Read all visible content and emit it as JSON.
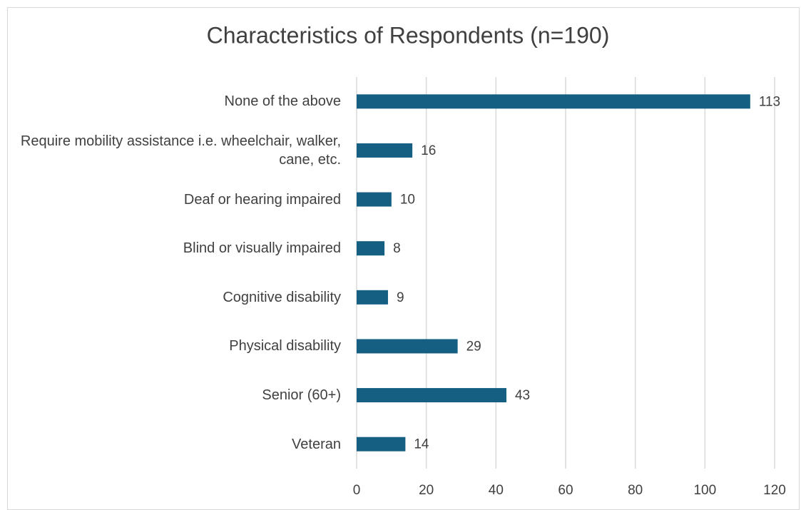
{
  "chart_data": {
    "type": "bar",
    "orientation": "horizontal",
    "title": "Characteristics of Respondents (n=190)",
    "categories": [
      "None of the above",
      "Require mobility assistance i.e. wheelchair, walker, cane, etc.",
      "Deaf or hearing impaired",
      "Blind or visually impaired",
      "Cognitive disability",
      "Physical disability",
      "Senior (60+)",
      "Veteran"
    ],
    "values": [
      113,
      16,
      10,
      8,
      9,
      29,
      43,
      14
    ],
    "color": "#155f82",
    "xlim": [
      0,
      120
    ],
    "xticks": [
      0,
      20,
      40,
      60,
      80,
      100,
      120
    ],
    "grid": true
  }
}
